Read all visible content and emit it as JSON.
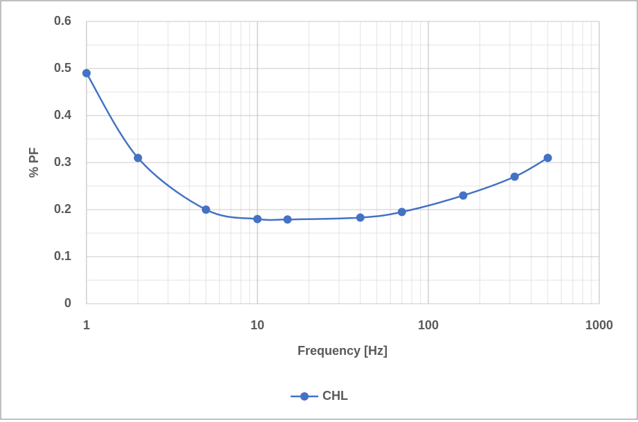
{
  "chart_data": {
    "type": "line",
    "x_label": "Frequency [Hz]",
    "y_label": "% PF",
    "x": [
      1,
      2,
      5,
      10,
      15,
      40,
      70,
      160,
      320,
      500
    ],
    "series": [
      {
        "name": "CHL",
        "color": "#4472c4",
        "values": [
          0.49,
          0.31,
          0.2,
          0.18,
          0.179,
          0.183,
          0.195,
          0.23,
          0.27,
          0.31
        ]
      }
    ],
    "x_scale": "log",
    "xlim": [
      1,
      1000
    ],
    "xticks": [
      1,
      10,
      100,
      1000
    ],
    "ylim": [
      0,
      0.6
    ],
    "yticks": [
      0,
      0.1,
      0.2,
      0.3,
      0.4,
      0.5,
      0.6
    ],
    "grid": true,
    "legend": "bottom"
  }
}
